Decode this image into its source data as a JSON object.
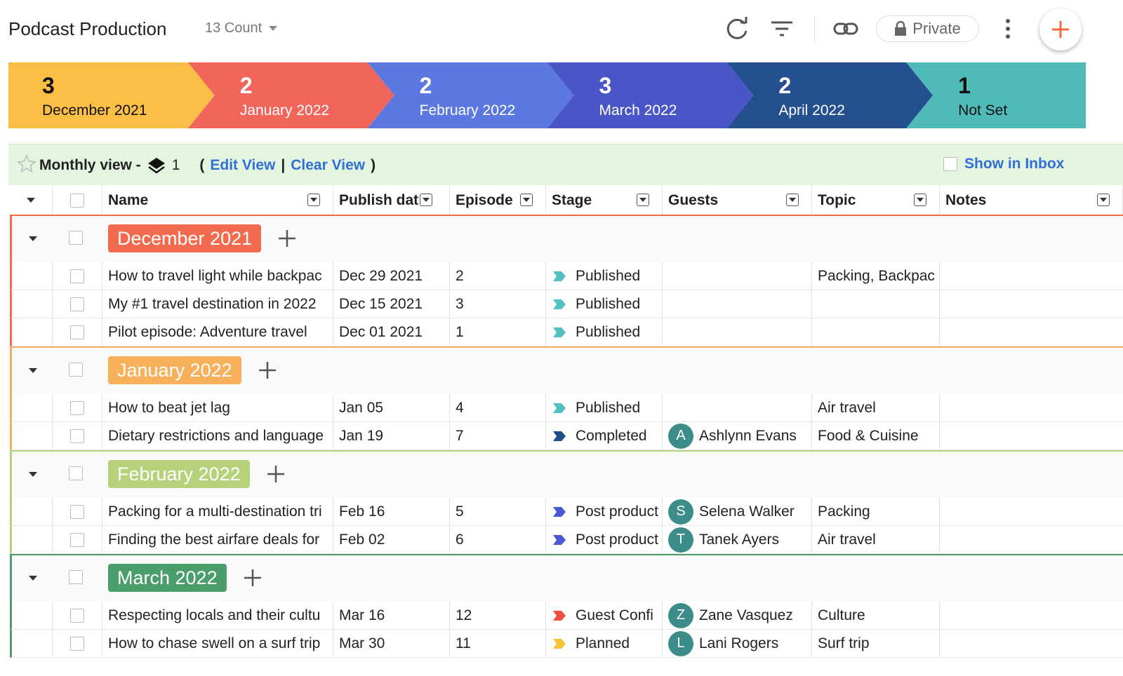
{
  "header": {
    "title": "Podcast Production",
    "count": "13 Count",
    "privacy": "Private"
  },
  "pipeline": [
    {
      "count": 3,
      "label": "December 2021",
      "color": "#fbbf45",
      "text_color": "#111111"
    },
    {
      "count": 2,
      "label": "January 2022",
      "color": "#f2655a",
      "text_color": "#ffffff"
    },
    {
      "count": 2,
      "label": "February 2022",
      "color": "#5b78e0",
      "text_color": "#ffffff"
    },
    {
      "count": 3,
      "label": "March 2022",
      "color": "#4a56c8",
      "text_color": "#ffffff"
    },
    {
      "count": 2,
      "label": "April 2022",
      "color": "#24508f",
      "text_color": "#ffffff"
    },
    {
      "count": 1,
      "label": "Not Set",
      "color": "#4fbbb9",
      "text_color": "#111111"
    }
  ],
  "view_bar": {
    "view_name": "Monthly view -",
    "layers": "1",
    "open": "(",
    "edit": "Edit View",
    "separator": "|",
    "clear": "Clear View",
    "close": ")",
    "inbox": "Show in Inbox"
  },
  "columns": [
    "Name",
    "Publish dat",
    "Episode",
    "Stage",
    "Guests",
    "Topic",
    "Notes"
  ],
  "groups": [
    {
      "label": "December 2021",
      "color": "#f26b4e",
      "rows": [
        {
          "name": "How to travel light while backpac",
          "date": "Dec 29 2021",
          "episode": "2",
          "stage": "Published",
          "stage_color": "#4fc1c1",
          "topic": "Packing, Backpac"
        },
        {
          "name": "My #1 travel destination in 2022",
          "date": "Dec 15 2021",
          "episode": "3",
          "stage": "Published",
          "stage_color": "#4fc1c1"
        },
        {
          "name": "Pilot episode: Adventure travel",
          "date": "Dec 01 2021",
          "episode": "1",
          "stage": "Published",
          "stage_color": "#4fc1c1"
        }
      ]
    },
    {
      "label": "January 2022",
      "color": "#f9b05a",
      "rows": [
        {
          "name": "How to beat jet lag",
          "date": "Jan 05",
          "episode": "4",
          "stage": "Published",
          "stage_color": "#4fc1c1",
          "topic": "Air travel"
        },
        {
          "name": "Dietary restrictions and language",
          "date": "Jan 19",
          "episode": "7",
          "stage": "Completed",
          "stage_color": "#1f4e8c",
          "guest_initial": "A",
          "guest": "Ashlynn Evans",
          "topic": "Food & Cuisine"
        }
      ]
    },
    {
      "label": "February 2022",
      "color": "#b5d27a",
      "rows": [
        {
          "name": "Packing for a multi-destination tri",
          "date": "Feb 16",
          "episode": "5",
          "stage": "Post product",
          "stage_color": "#4a58d6",
          "guest_initial": "S",
          "guest": "Selena Walker",
          "topic": "Packing"
        },
        {
          "name": "Finding the best airfare deals for",
          "date": "Feb 02",
          "episode": "6",
          "stage": "Post product",
          "stage_color": "#4a58d6",
          "guest_initial": "T",
          "guest": "Tanek Ayers",
          "topic": "Air travel"
        }
      ]
    },
    {
      "label": "March 2022",
      "color": "#4a9e6c",
      "rows": [
        {
          "name": "Respecting locals and their cultu",
          "date": "Mar 16",
          "episode": "12",
          "stage": "Guest Confi",
          "stage_color": "#f0503e",
          "guest_initial": "Z",
          "guest": "Zane Vasquez",
          "topic": "Culture"
        },
        {
          "name": "How to chase swell on a surf trip",
          "date": "Mar 30",
          "episode": "11",
          "stage": "Planned",
          "stage_color": "#f8c23a",
          "guest_initial": "L",
          "guest": "Lani Rogers",
          "topic": "Surf trip"
        }
      ]
    }
  ]
}
